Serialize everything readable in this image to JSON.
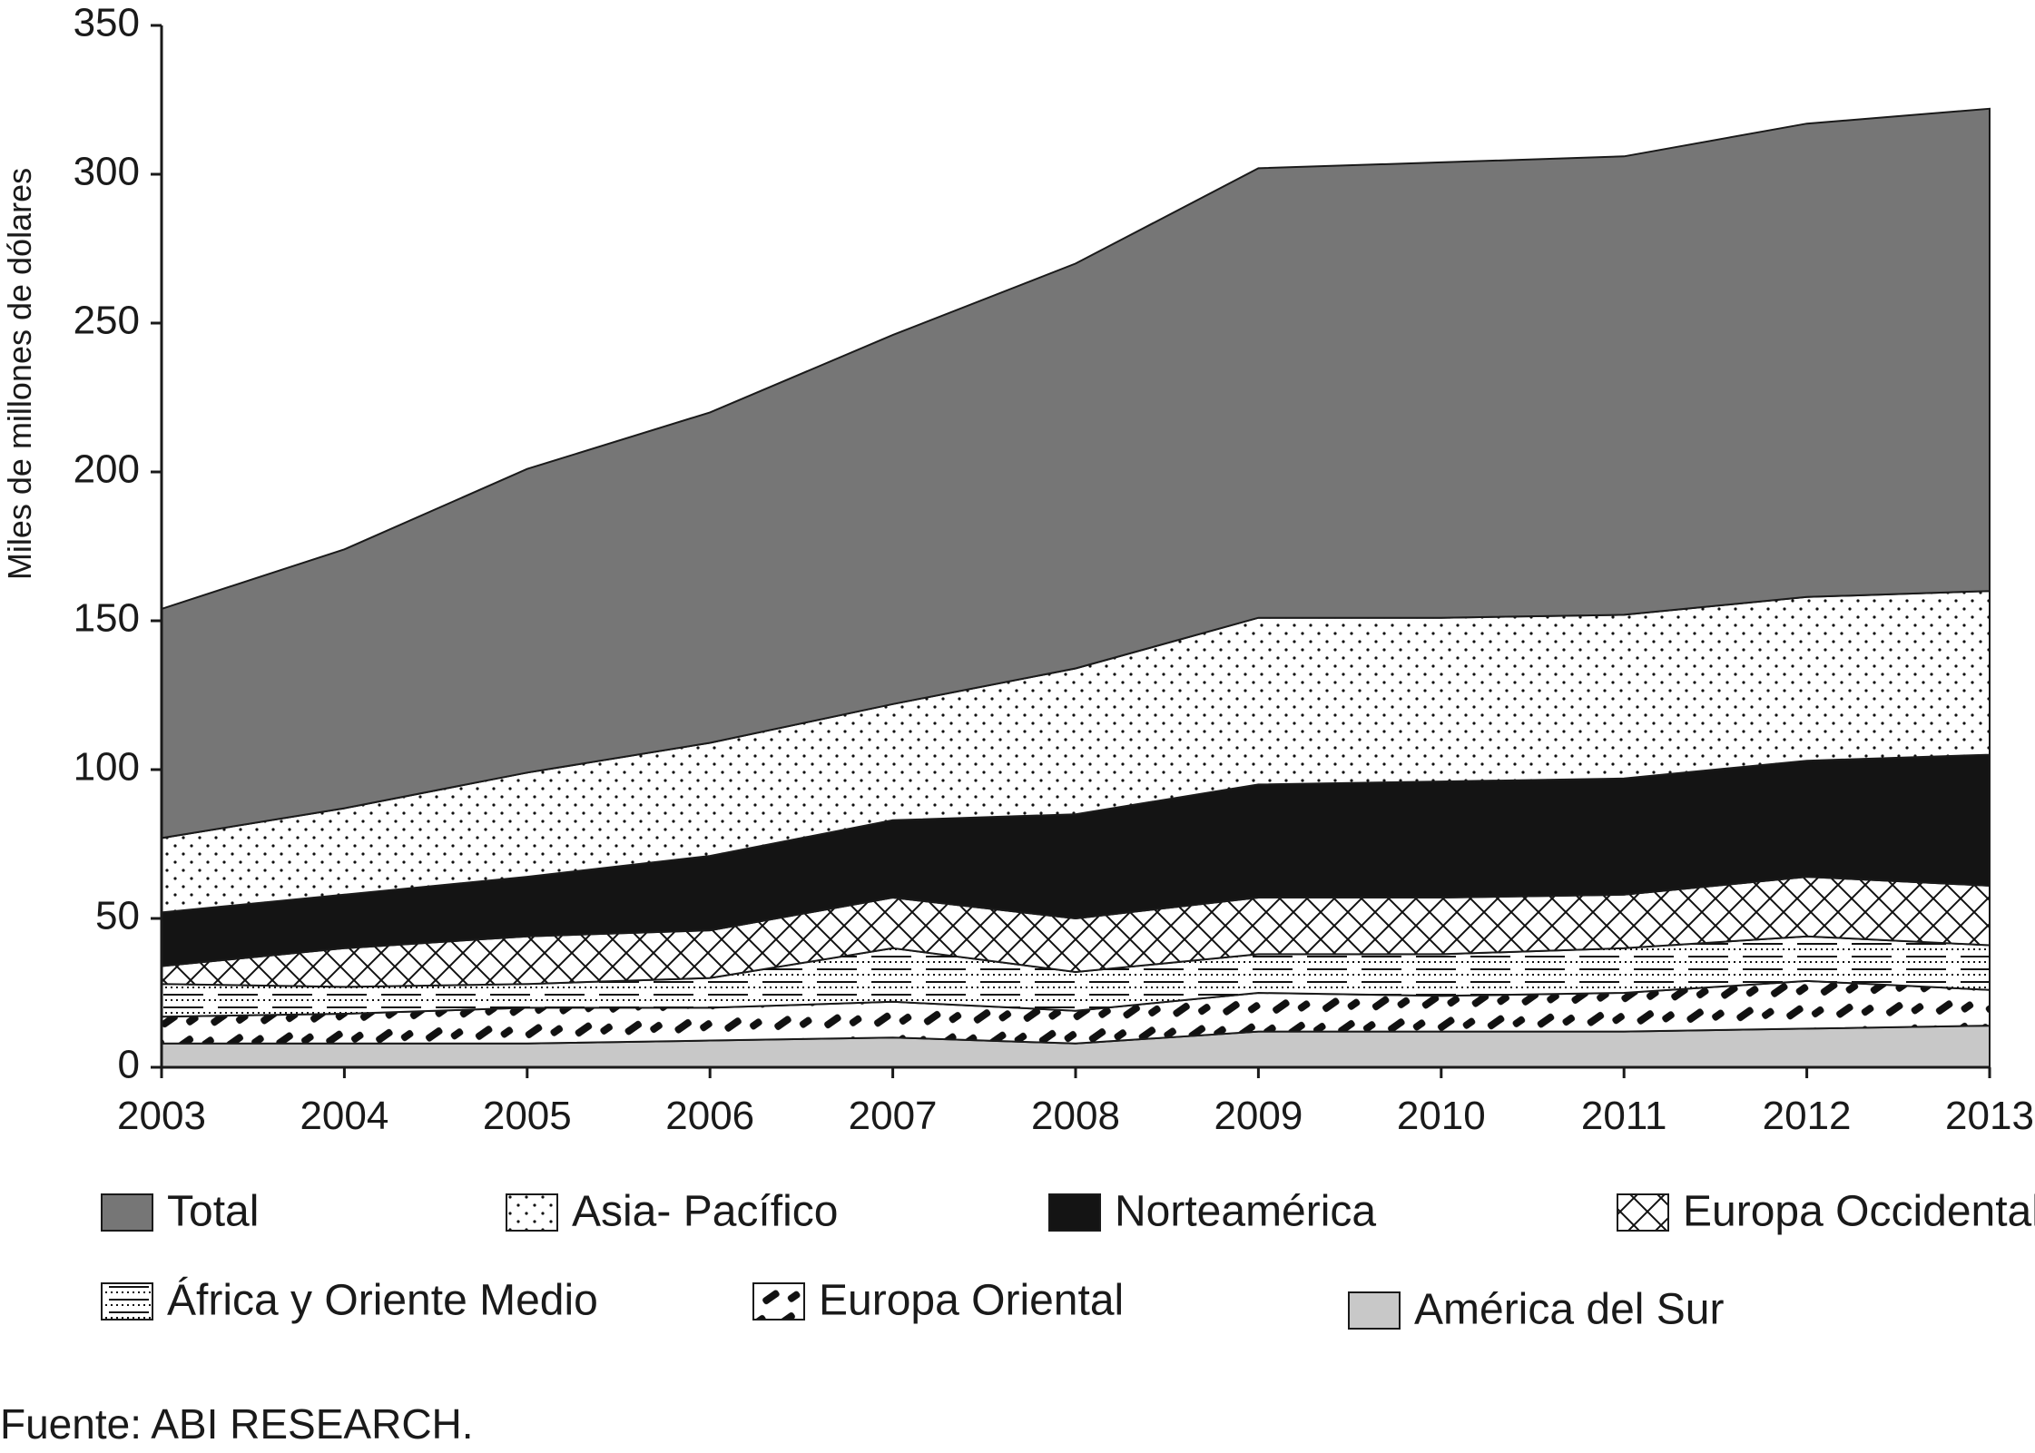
{
  "chart_data": {
    "type": "area",
    "ylabel": "Miles de millones de dólares",
    "xlabel": "",
    "source": "Fuente: ABI RESEARCH.",
    "x": [
      "2003",
      "2004",
      "2005",
      "2006",
      "2007",
      "2008",
      "2009",
      "2010",
      "2011",
      "2012",
      "2013"
    ],
    "ylim": [
      0,
      350
    ],
    "yticks": [
      0,
      50,
      100,
      150,
      200,
      250,
      300,
      350
    ],
    "grid": false,
    "legend_position": "bottom",
    "series": [
      {
        "name": "América del Sur",
        "pattern": "solid-light",
        "color": "#c8c8c8",
        "values": [
          8,
          8,
          8,
          9,
          10,
          8,
          12,
          12,
          12,
          13,
          14
        ]
      },
      {
        "name": "Europa Oriental",
        "pattern": "dashes",
        "color": "#111111",
        "values": [
          17,
          18,
          20,
          20,
          22,
          19,
          25,
          24,
          25,
          29,
          26
        ]
      },
      {
        "name": "África y Oriente Medio",
        "pattern": "lines",
        "color": "#111111",
        "values": [
          28,
          27,
          28,
          30,
          40,
          32,
          38,
          38,
          40,
          44,
          41
        ]
      },
      {
        "name": "Europa Occidental",
        "pattern": "crosshatch",
        "color": "#111111",
        "values": [
          34,
          40,
          44,
          46,
          57,
          50,
          57,
          57,
          58,
          64,
          61
        ]
      },
      {
        "name": "Norteamérica",
        "pattern": "solid-dark",
        "color": "#141414",
        "values": [
          52,
          58,
          64,
          71,
          83,
          85,
          95,
          96,
          97,
          103,
          105
        ]
      },
      {
        "name": "Asia- Pacífico",
        "pattern": "dots",
        "color": "#111111",
        "values": [
          77,
          87,
          99,
          109,
          122,
          134,
          151,
          151,
          152,
          158,
          160
        ]
      },
      {
        "name": "Total",
        "pattern": "solid-mid",
        "color": "#767676",
        "values": [
          154,
          174,
          201,
          220,
          246,
          270,
          302,
          304,
          306,
          317,
          322
        ]
      }
    ]
  },
  "legend": [
    {
      "name": "Total",
      "pattern": "solid-mid"
    },
    {
      "name": "Asia- Pacífico",
      "pattern": "dots"
    },
    {
      "name": "Norteamérica",
      "pattern": "solid-dark"
    },
    {
      "name": "Europa Occidental",
      "pattern": "crosshatch"
    },
    {
      "name": "África y Oriente Medio",
      "pattern": "lines"
    },
    {
      "name": "Europa Oriental",
      "pattern": "dashes"
    },
    {
      "name": "América del Sur",
      "pattern": "solid-light"
    }
  ]
}
